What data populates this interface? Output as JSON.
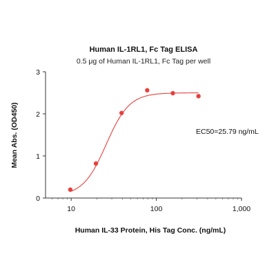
{
  "chart_data": {
    "type": "scatter",
    "title": "Human IL-1RL1, Fc Tag ELISA",
    "subtitle": "0.5 μg of Human IL-1RL1, Fc Tag per well",
    "xlabel": "Human IL-33 Protein, His Tag Conc. (ng/mL)",
    "ylabel": "Mean Abs. (OD450)",
    "x_scale": "log",
    "xlim": [
      5,
      1000
    ],
    "ylim": [
      0,
      3
    ],
    "x_ticks": [
      10,
      100,
      1000
    ],
    "x_tick_labels": [
      "10",
      "100",
      "1,000"
    ],
    "y_ticks": [
      0,
      1,
      2,
      3
    ],
    "y_tick_labels": [
      "0",
      "1",
      "2",
      "3"
    ],
    "grid": false,
    "series": [
      {
        "color": "#e8403c",
        "points": [
          {
            "x": 9.77,
            "y": 0.2
          },
          {
            "x": 19.53,
            "y": 0.82
          },
          {
            "x": 39.06,
            "y": 2.02
          },
          {
            "x": 78.13,
            "y": 2.56
          },
          {
            "x": 156.25,
            "y": 2.49
          },
          {
            "x": 312.5,
            "y": 2.42
          }
        ],
        "fit": {
          "bottom": 0.05,
          "top": 2.5,
          "ec50": 25.79,
          "hill": 3.2,
          "x_range": [
            9.77,
            312.5
          ]
        }
      }
    ],
    "annotations": [
      {
        "text": "EC50=25.79 ng/mL"
      }
    ]
  }
}
